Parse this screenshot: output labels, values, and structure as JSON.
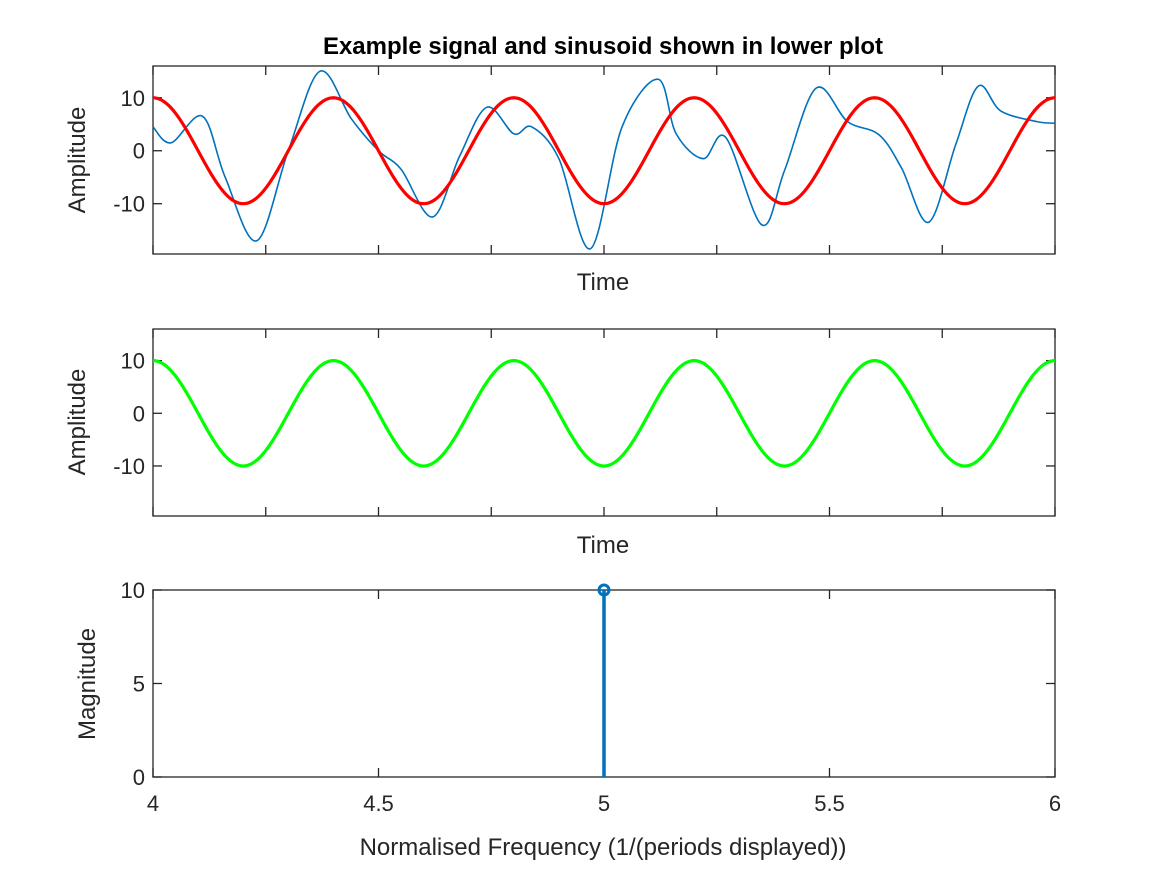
{
  "colors": {
    "signal": "#0072BD",
    "sinusoid_top": "#FF0000",
    "sinusoid_middle": "#00FF00",
    "stem": "#0072BD",
    "axes": "#262626",
    "background": "#FFFFFF"
  },
  "chart_data": [
    {
      "id": "top",
      "type": "line",
      "title": "Example signal and sinusoid shown in lower plot",
      "xlabel": "Time",
      "ylabel": "Amplitude",
      "xlim": [
        0,
        2
      ],
      "ylim": [
        -19.5,
        16
      ],
      "yticks": [
        -10,
        0,
        10
      ],
      "ytick_labels": [
        "-10",
        "0",
        "10"
      ],
      "xticks": [
        0,
        0.25,
        0.5,
        0.75,
        1,
        1.25,
        1.5,
        1.75,
        2
      ],
      "show_xtick_labels": false,
      "grid": false,
      "series": [
        {
          "style": "signal",
          "description_points_x": [
            0,
            0.04,
            0.11,
            0.16,
            0.23,
            0.3,
            0.37,
            0.44,
            0.5,
            0.55,
            0.62,
            0.68,
            0.74,
            0.8,
            0.84,
            0.9,
            0.97,
            1.04,
            1.12,
            1.16,
            1.22,
            1.27,
            1.35,
            1.4,
            1.47,
            1.54,
            1.61,
            1.66,
            1.72,
            1.78,
            1.83,
            1.88,
            1.96,
            2
          ],
          "description_points_y": [
            4.5,
            1.5,
            6.5,
            -5,
            -17,
            0,
            15,
            6,
            0,
            -3.5,
            -12.5,
            -1,
            8.2,
            3.2,
            4.5,
            -1.5,
            -18.5,
            4.5,
            13.5,
            3.2,
            -1.5,
            2.5,
            -14,
            -3.8,
            11.8,
            5.5,
            3,
            -3.3,
            -13.5,
            1.2,
            12.2,
            7.5,
            5.5,
            5.2
          ]
        },
        {
          "style": "sinusoid_top",
          "amplitude": 10,
          "frequency": 2.5
        }
      ]
    },
    {
      "id": "middle",
      "type": "line",
      "xlabel": "Time",
      "ylabel": "Amplitude",
      "xlim": [
        0,
        2
      ],
      "ylim": [
        -19.5,
        16
      ],
      "yticks": [
        -10,
        0,
        10
      ],
      "ytick_labels": [
        "-10",
        "0",
        "10"
      ],
      "xticks": [
        0,
        0.25,
        0.5,
        0.75,
        1,
        1.25,
        1.5,
        1.75,
        2
      ],
      "show_xtick_labels": false,
      "grid": false,
      "series": [
        {
          "style": "sinusoid_middle",
          "amplitude": 10,
          "frequency": 2.5
        }
      ]
    },
    {
      "id": "bottom",
      "type": "stem",
      "xlabel": "Normalised Frequency (1/(periods displayed))",
      "ylabel": "Magnitude",
      "xlim": [
        4,
        6
      ],
      "ylim": [
        0,
        10
      ],
      "yticks": [
        0,
        5,
        10
      ],
      "ytick_labels": [
        "0",
        "5",
        "10"
      ],
      "xticks": [
        4,
        4.5,
        5,
        5.5,
        6
      ],
      "xtick_labels": [
        "4",
        "4.5",
        "5",
        "5.5",
        "6"
      ],
      "show_xtick_labels": true,
      "grid": false,
      "points": [
        {
          "x": 5,
          "y": 10
        }
      ]
    }
  ]
}
